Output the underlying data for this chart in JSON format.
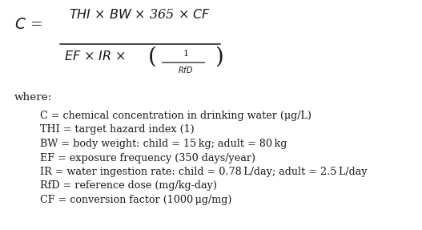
{
  "bg_color": "#ffffff",
  "text_color": "#1a1a1a",
  "figsize": [
    5.27,
    2.87
  ],
  "dpi": 100,
  "where_label": "where:",
  "definitions": [
    "C = chemical concentration in drinking water (μg/L)",
    "THI = target hazard index (1)",
    "BW = body weight: child = 15 kg; adult = 80 kg",
    "EF = exposure frequency (350 days/year)",
    "IR = water ingestion rate: child = 0.78 L/day; adult = 2.5 L/day",
    "RfD = reference dose (mg/kg-day)",
    "CF = conversion factor (1000 μg/mg)"
  ],
  "eq_fontsize": 11.5,
  "body_fontsize": 9.2,
  "small_fontsize": 7.0,
  "paren_fontsize": 20
}
